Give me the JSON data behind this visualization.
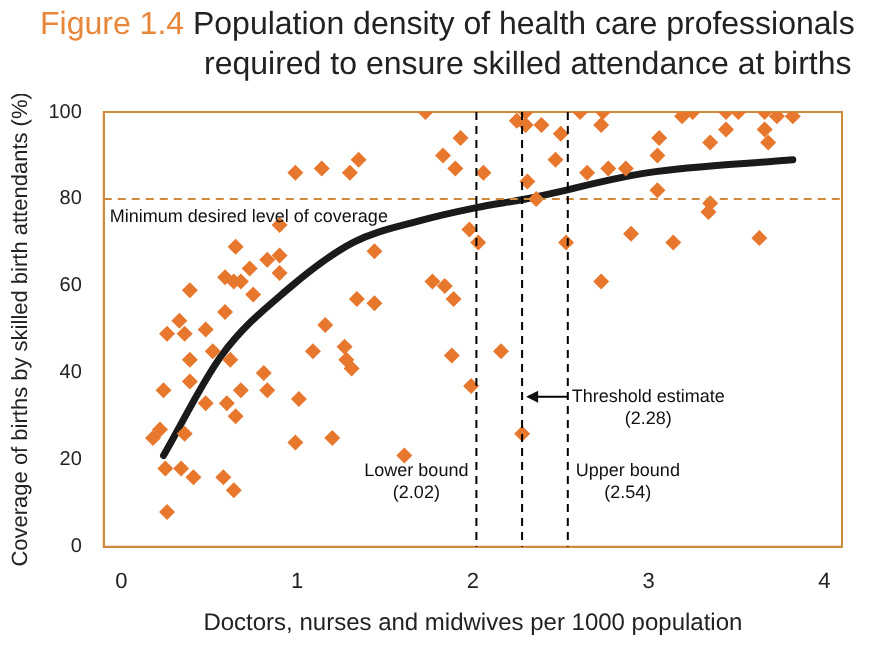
{
  "chart_data": {
    "type": "scatter",
    "title": "Figure 1.4 Population density of health care professionals required to ensure skilled attendance at births",
    "xlabel": "Doctors, nurses and midwives per 1000 population",
    "ylabel": "Coverage of births by skilled birth attendants (%)",
    "xlim": [
      -0.1,
      4.1
    ],
    "xticks": [
      0,
      1,
      2,
      3,
      4
    ],
    "ylim": [
      0,
      100
    ],
    "yticks": [
      0,
      20,
      40,
      60,
      80,
      100
    ],
    "grid": false,
    "legend": false,
    "marker": "diamond",
    "series": [
      {
        "color": "#e8772e",
        "x": [
          0.26,
          0.52,
          0.39,
          0.62,
          1.09,
          1.27,
          1.28,
          1.31,
          1.88,
          1.99,
          0.81,
          0.83,
          0.68,
          0.39,
          0.24,
          0.48,
          0.6,
          0.65,
          1.01,
          0.36,
          0.18,
          0.22,
          0.99,
          1.2,
          1.61,
          0.25,
          0.34,
          0.41,
          0.58,
          0.64,
          0.26,
          1.73,
          0.99,
          1.14,
          1.3,
          1.35,
          1.83,
          1.9,
          1.93,
          2.06,
          1.98,
          2.03,
          0.9,
          0.65,
          0.83,
          0.9,
          0.59,
          0.64,
          0.68,
          0.73,
          0.9,
          1.44,
          0.39,
          0.75,
          1.77,
          1.84,
          1.89,
          1.34,
          1.44,
          0.59,
          0.33,
          0.36,
          0.48,
          1.16,
          2.25,
          2.3,
          2.3,
          2.39,
          2.5,
          2.47,
          2.61,
          2.74,
          2.73,
          2.65,
          2.77,
          2.87,
          2.31,
          2.36,
          3.06,
          3.05,
          3.05,
          3.19,
          3.25,
          3.44,
          3.51,
          3.66,
          3.73,
          3.82,
          3.66,
          3.44,
          3.35,
          3.68,
          3.35,
          3.34,
          2.53,
          2.9,
          3.14,
          3.63,
          2.73,
          2.16,
          2.28
        ],
        "values": [
          49,
          45,
          43,
          43,
          45,
          46,
          43,
          41,
          44,
          37,
          40,
          36,
          36,
          38,
          36,
          33,
          33,
          30,
          34,
          26,
          25,
          27,
          24,
          25,
          21,
          18,
          18,
          16,
          16,
          13,
          8,
          100,
          86,
          87,
          86,
          89,
          90,
          87,
          94,
          86,
          73,
          70,
          74,
          69,
          66,
          67,
          62,
          61,
          61,
          64,
          63,
          68,
          59,
          58,
          61,
          60,
          57,
          57,
          56,
          54,
          52,
          49,
          50,
          51,
          98,
          100,
          97,
          97,
          95,
          89,
          100,
          100,
          97,
          86,
          87,
          87,
          84,
          80,
          94,
          90,
          82,
          99,
          100,
          100,
          100,
          100,
          99,
          99,
          96,
          96,
          93,
          93,
          79,
          77,
          70,
          72,
          70,
          71,
          61,
          45,
          26
        ]
      },
      {
        "type": "line",
        "color": "#1a1a1a",
        "marker": "none",
        "x": [
          0.24,
          0.57,
          0.94,
          1.32,
          1.7,
          2.02,
          2.3,
          2.99,
          3.82
        ],
        "values": [
          21,
          44,
          59,
          70,
          75,
          78,
          80,
          86,
          89
        ]
      }
    ],
    "ref_lines": [
      {
        "axis": "y",
        "value": 80,
        "label": "Minimum desired level of coverage",
        "color": "#d08a3c",
        "line_style": "dashed"
      },
      {
        "axis": "x",
        "value": 2.02,
        "label": "Lower bound\n(2.02)",
        "color": "#000000",
        "line_style": "dashed"
      },
      {
        "axis": "x",
        "value": 2.28,
        "label": "Threshold estimate\n(2.28)",
        "color": "#000000",
        "line_style": "dashed"
      },
      {
        "axis": "x",
        "value": 2.54,
        "label": "Upper bound\n(2.54)",
        "color": "#000000",
        "line_style": "dashed"
      }
    ]
  }
}
